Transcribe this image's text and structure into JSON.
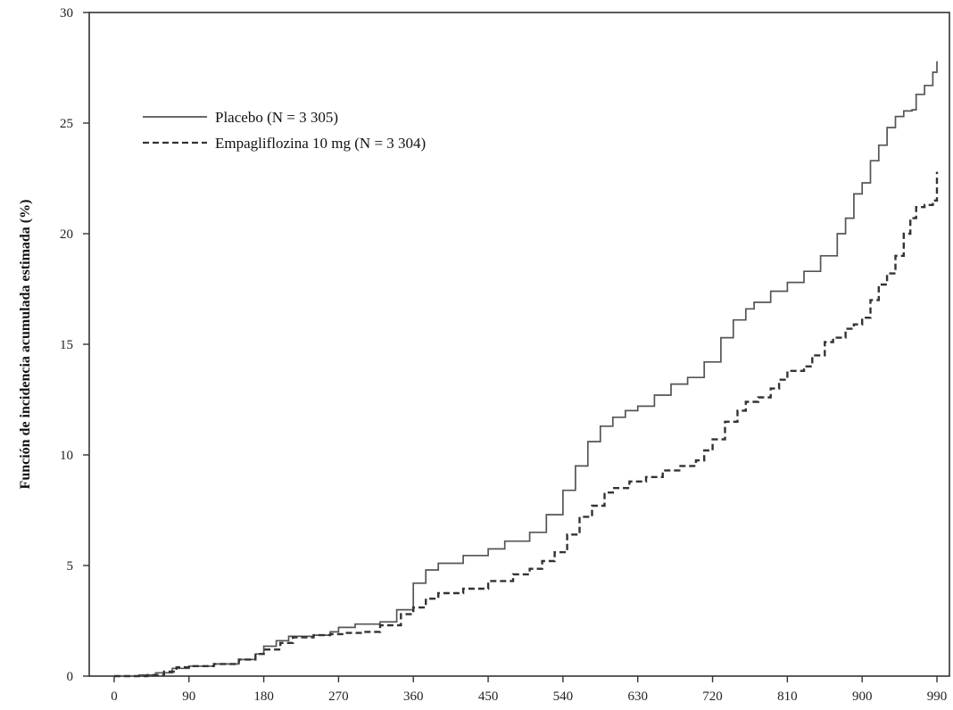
{
  "chart_data": {
    "type": "line",
    "title": "",
    "xlabel": "",
    "ylabel": "Función de incidencia acumulada estimada (%)",
    "xlim": [
      -30,
      1005
    ],
    "ylim": [
      0,
      30
    ],
    "xticks": [
      0,
      90,
      180,
      270,
      360,
      450,
      540,
      630,
      720,
      810,
      900,
      990
    ],
    "yticks": [
      0,
      5,
      10,
      15,
      20,
      25,
      30
    ],
    "grid": false,
    "legend_position": "top-left",
    "series": [
      {
        "name": "Placebo (N = 3 305)",
        "style": "solid",
        "color": "#555555",
        "points": [
          [
            0,
            0
          ],
          [
            30,
            0.05
          ],
          [
            50,
            0.15
          ],
          [
            70,
            0.35
          ],
          [
            90,
            0.45
          ],
          [
            120,
            0.55
          ],
          [
            150,
            0.75
          ],
          [
            170,
            1.0
          ],
          [
            180,
            1.35
          ],
          [
            195,
            1.6
          ],
          [
            210,
            1.8
          ],
          [
            240,
            1.85
          ],
          [
            260,
            2.0
          ],
          [
            270,
            2.2
          ],
          [
            290,
            2.35
          ],
          [
            320,
            2.45
          ],
          [
            340,
            3.0
          ],
          [
            360,
            4.2
          ],
          [
            375,
            4.8
          ],
          [
            390,
            5.1
          ],
          [
            420,
            5.45
          ],
          [
            450,
            5.75
          ],
          [
            470,
            6.1
          ],
          [
            500,
            6.5
          ],
          [
            520,
            7.3
          ],
          [
            540,
            8.4
          ],
          [
            555,
            9.5
          ],
          [
            570,
            10.6
          ],
          [
            585,
            11.3
          ],
          [
            600,
            11.7
          ],
          [
            615,
            12.0
          ],
          [
            630,
            12.2
          ],
          [
            650,
            12.7
          ],
          [
            670,
            13.2
          ],
          [
            690,
            13.5
          ],
          [
            710,
            14.2
          ],
          [
            730,
            15.3
          ],
          [
            745,
            16.1
          ],
          [
            760,
            16.6
          ],
          [
            770,
            16.9
          ],
          [
            790,
            17.4
          ],
          [
            810,
            17.8
          ],
          [
            830,
            18.3
          ],
          [
            850,
            19.0
          ],
          [
            870,
            20.0
          ],
          [
            880,
            20.7
          ],
          [
            890,
            21.8
          ],
          [
            900,
            22.3
          ],
          [
            910,
            23.3
          ],
          [
            920,
            24.0
          ],
          [
            930,
            24.8
          ],
          [
            940,
            25.3
          ],
          [
            950,
            25.55
          ],
          [
            960,
            25.6
          ],
          [
            965,
            26.3
          ],
          [
            975,
            26.7
          ],
          [
            985,
            27.3
          ],
          [
            990,
            27.8
          ]
        ]
      },
      {
        "name": "Empagliflozina 10 mg (N = 3 304)",
        "style": "dashed",
        "color": "#333333",
        "points": [
          [
            0,
            0
          ],
          [
            40,
            0.05
          ],
          [
            60,
            0.2
          ],
          [
            75,
            0.4
          ],
          [
            90,
            0.45
          ],
          [
            120,
            0.55
          ],
          [
            150,
            0.75
          ],
          [
            170,
            1.0
          ],
          [
            180,
            1.2
          ],
          [
            200,
            1.5
          ],
          [
            215,
            1.75
          ],
          [
            240,
            1.85
          ],
          [
            260,
            1.9
          ],
          [
            280,
            1.95
          ],
          [
            300,
            2.0
          ],
          [
            320,
            2.3
          ],
          [
            345,
            2.8
          ],
          [
            360,
            3.1
          ],
          [
            375,
            3.5
          ],
          [
            390,
            3.75
          ],
          [
            420,
            3.95
          ],
          [
            450,
            4.3
          ],
          [
            480,
            4.6
          ],
          [
            500,
            4.85
          ],
          [
            515,
            5.2
          ],
          [
            530,
            5.6
          ],
          [
            545,
            6.4
          ],
          [
            560,
            7.2
          ],
          [
            575,
            7.7
          ],
          [
            590,
            8.3
          ],
          [
            600,
            8.5
          ],
          [
            620,
            8.8
          ],
          [
            640,
            9.0
          ],
          [
            660,
            9.3
          ],
          [
            680,
            9.5
          ],
          [
            700,
            9.75
          ],
          [
            710,
            10.2
          ],
          [
            720,
            10.7
          ],
          [
            735,
            11.5
          ],
          [
            750,
            12.0
          ],
          [
            760,
            12.4
          ],
          [
            775,
            12.6
          ],
          [
            790,
            13.0
          ],
          [
            800,
            13.4
          ],
          [
            810,
            13.8
          ],
          [
            830,
            14.0
          ],
          [
            840,
            14.5
          ],
          [
            855,
            15.1
          ],
          [
            865,
            15.3
          ],
          [
            880,
            15.7
          ],
          [
            890,
            15.9
          ],
          [
            900,
            16.2
          ],
          [
            910,
            17.0
          ],
          [
            920,
            17.7
          ],
          [
            930,
            18.2
          ],
          [
            940,
            19.0
          ],
          [
            950,
            20.0
          ],
          [
            958,
            20.7
          ],
          [
            965,
            21.2
          ],
          [
            975,
            21.3
          ],
          [
            985,
            21.5
          ],
          [
            990,
            22.8
          ]
        ]
      }
    ]
  }
}
